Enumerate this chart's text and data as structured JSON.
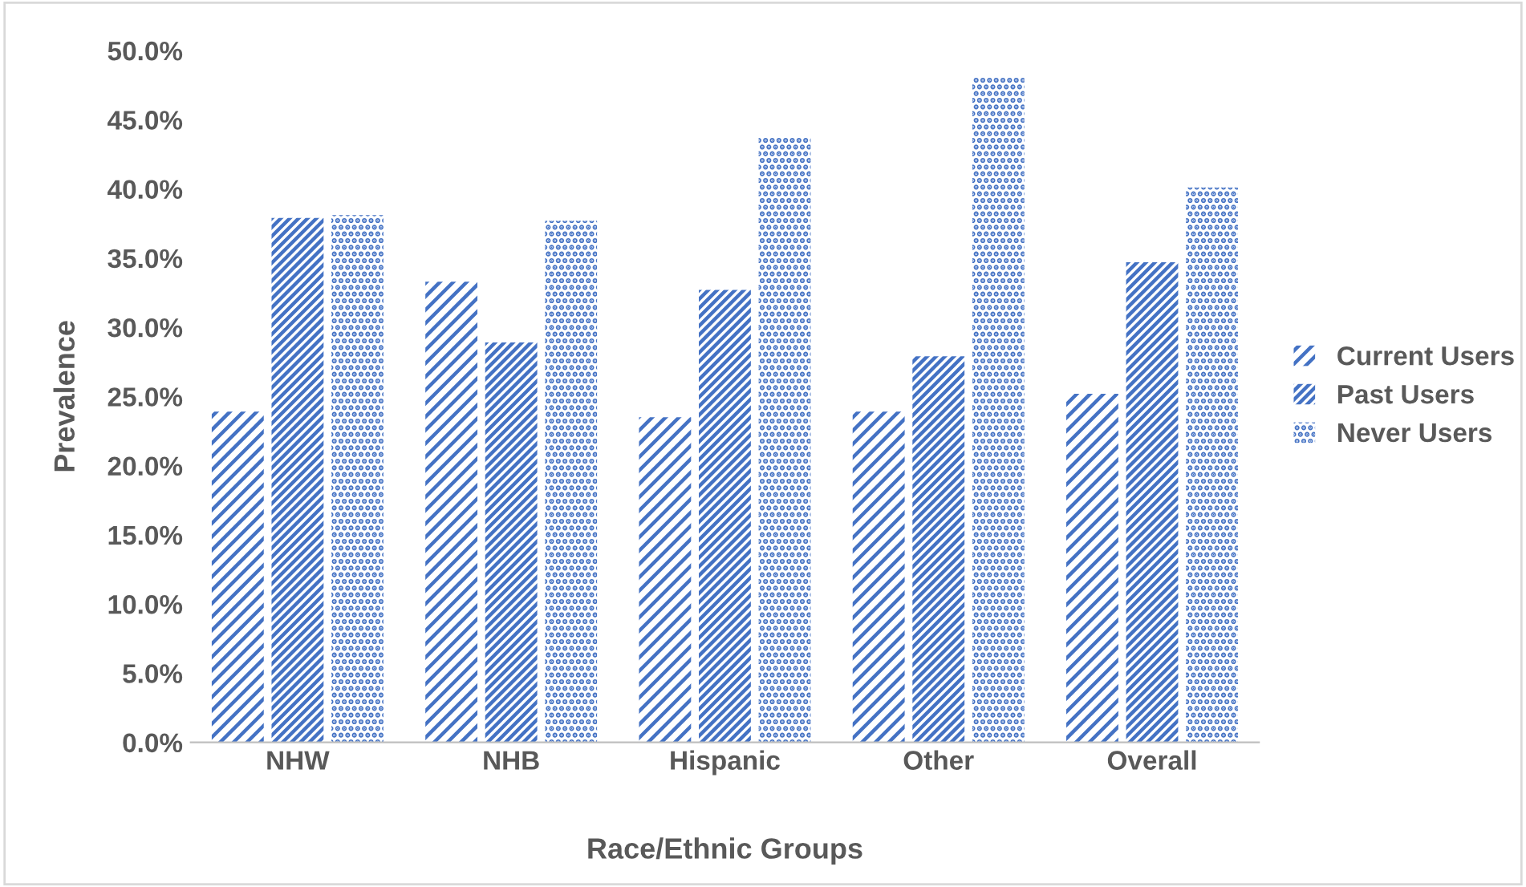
{
  "chart_data": {
    "type": "bar",
    "xlabel": "Race/Ethnic Groups",
    "ylabel": "Prevalence",
    "categories": [
      "NHW",
      "NHB",
      "Hispanic",
      "Other",
      "Overall"
    ],
    "series": [
      {
        "name": "Current Users",
        "color": "#4472c4",
        "values": [
          23.9,
          33.3,
          23.5,
          23.9,
          25.2
        ]
      },
      {
        "name": "Past Users",
        "color": "#4472c4",
        "values": [
          37.9,
          28.9,
          32.7,
          27.9,
          34.7
        ]
      },
      {
        "name": "Never Users",
        "color": "#4472c4",
        "values": [
          38.1,
          37.7,
          43.7,
          48.1,
          40.1
        ]
      }
    ],
    "ylim": [
      0,
      50
    ],
    "yticks": [
      {
        "value": 0,
        "label": "0.0%"
      },
      {
        "value": 5,
        "label": "5.0%"
      },
      {
        "value": 10,
        "label": "10.0%"
      },
      {
        "value": 15,
        "label": "15.0%"
      },
      {
        "value": 20,
        "label": "20.0%"
      },
      {
        "value": 25,
        "label": "25.0%"
      },
      {
        "value": 30,
        "label": "30.0%"
      },
      {
        "value": 35,
        "label": "35.0%"
      },
      {
        "value": 40,
        "label": "40.0%"
      },
      {
        "value": 45,
        "label": "45.0%"
      },
      {
        "value": 50,
        "label": "50.0%"
      }
    ],
    "grid": false,
    "legend": "right"
  }
}
